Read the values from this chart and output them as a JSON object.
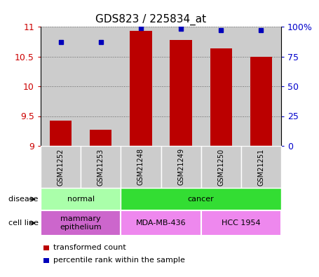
{
  "title": "GDS823 / 225834_at",
  "samples": [
    "GSM21252",
    "GSM21253",
    "GSM21248",
    "GSM21249",
    "GSM21250",
    "GSM21251"
  ],
  "transformed_counts": [
    9.42,
    9.27,
    10.93,
    10.78,
    10.63,
    10.5
  ],
  "percentile_ranks": [
    87,
    87,
    99,
    98,
    97,
    97
  ],
  "ylim_left": [
    9.0,
    11.0
  ],
  "ylim_right": [
    0,
    100
  ],
  "yticks_left": [
    9.0,
    9.5,
    10.0,
    10.5,
    11.0
  ],
  "yticks_right": [
    0,
    25,
    50,
    75,
    100
  ],
  "bar_color": "#bb0000",
  "dot_color": "#0000bb",
  "disease_state_groups": [
    {
      "label": "normal",
      "span": [
        0,
        2
      ],
      "color": "#aaffaa"
    },
    {
      "label": "cancer",
      "span": [
        2,
        6
      ],
      "color": "#33dd33"
    }
  ],
  "cell_line_groups": [
    {
      "label": "mammary\nepithelium",
      "span": [
        0,
        2
      ],
      "color": "#cc66cc"
    },
    {
      "label": "MDA-MB-436",
      "span": [
        2,
        4
      ],
      "color": "#ee88ee"
    },
    {
      "label": "HCC 1954",
      "span": [
        4,
        6
      ],
      "color": "#ee88ee"
    }
  ],
  "legend_bar_label": "transformed count",
  "legend_dot_label": "percentile rank within the sample",
  "disease_state_label": "disease state",
  "cell_line_label": "cell line",
  "yaxis_left_color": "#cc0000",
  "yaxis_right_color": "#0000cc",
  "grid_color": "#666666",
  "bar_width": 0.55,
  "sample_band_color": "#cccccc",
  "title_fontsize": 11,
  "tick_fontsize": 9,
  "label_fontsize": 8,
  "legend_fontsize": 8
}
